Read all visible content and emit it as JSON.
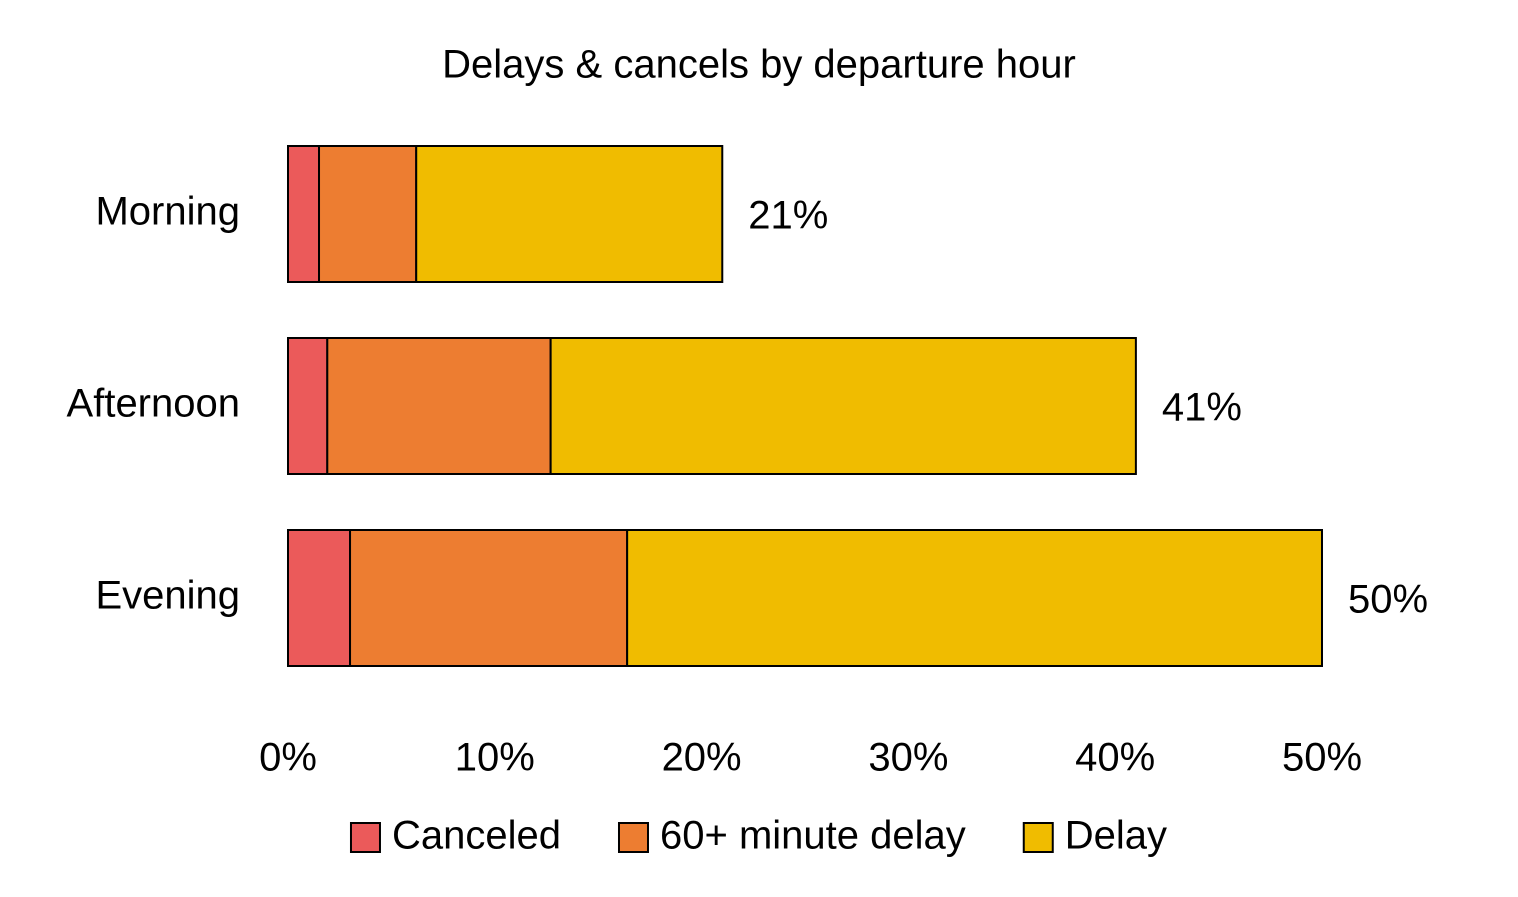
{
  "chart_data": {
    "type": "stacked-bar-horizontal",
    "title": "Delays & cancels by departure hour",
    "categories": [
      "Morning",
      "Afternoon",
      "Evening"
    ],
    "series": [
      {
        "name": "Canceled",
        "color": "#eb5a5a",
        "values": [
          1.5,
          1.9,
          3.0
        ]
      },
      {
        "name": "60+ minute delay",
        "color": "#ed7d31",
        "values": [
          4.7,
          10.8,
          13.4
        ]
      },
      {
        "name": "Delay",
        "color": "#f0bc00",
        "values": [
          14.8,
          28.3,
          33.6
        ]
      }
    ],
    "totals": [
      21,
      41,
      50
    ],
    "total_labels": [
      "21%",
      "41%",
      "50%"
    ],
    "xlim": [
      0,
      50
    ],
    "xticks": [
      {
        "value": 0,
        "label": "0%"
      },
      {
        "value": 10,
        "label": "10%"
      },
      {
        "value": 20,
        "label": "20%"
      },
      {
        "value": 30,
        "label": "30%"
      },
      {
        "value": 40,
        "label": "40%"
      },
      {
        "value": 50,
        "label": "50%"
      }
    ],
    "legend": "bottom"
  }
}
